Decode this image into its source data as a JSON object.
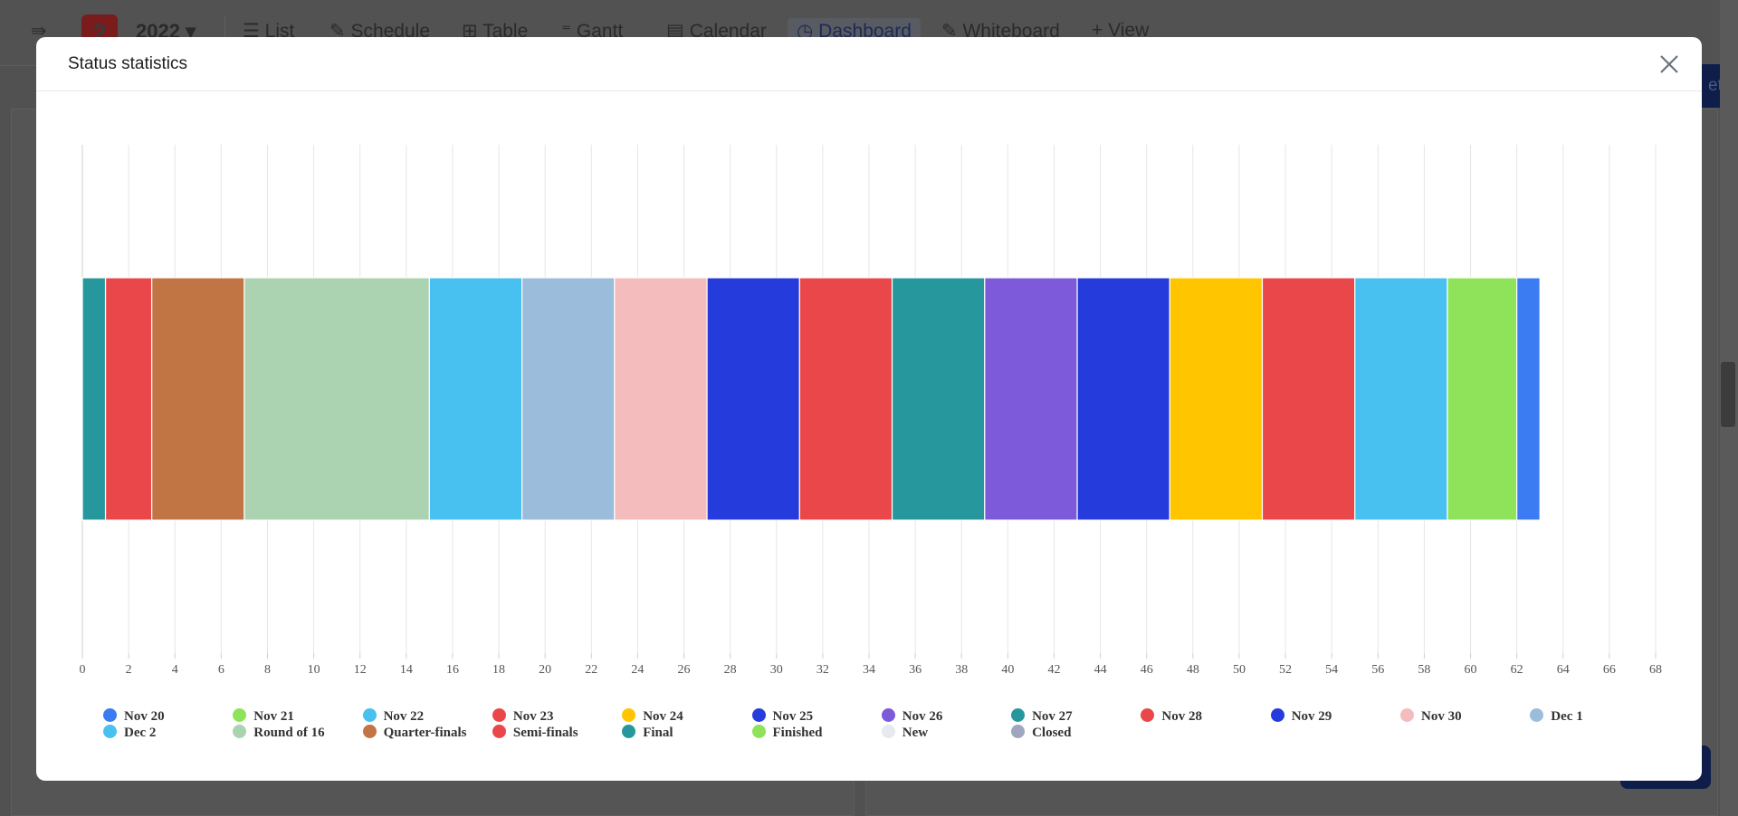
{
  "background": {
    "project_badge": "2",
    "year": "2022",
    "views": [
      "List",
      "Schedule",
      "Table",
      "Gantt",
      "Calendar",
      "Dashboard",
      "Whiteboard",
      "View"
    ],
    "active_view": "Dashboard",
    "right_button_fragment": "et"
  },
  "modal": {
    "title": "Status statistics",
    "close_icon": "close-icon"
  },
  "chart_data": {
    "type": "bar",
    "orientation": "horizontal",
    "stacked": true,
    "xlim": [
      0,
      68
    ],
    "x_ticks": [
      0,
      2,
      4,
      6,
      8,
      10,
      12,
      14,
      16,
      18,
      20,
      22,
      24,
      26,
      28,
      30,
      32,
      34,
      36,
      38,
      40,
      42,
      44,
      46,
      48,
      50,
      52,
      54,
      56,
      58,
      60,
      62,
      64,
      66,
      68
    ],
    "grid": true,
    "legend_position": "bottom",
    "series": [
      {
        "name": "Nov 20",
        "value": 1,
        "color": "#3b7cf2"
      },
      {
        "name": "Nov 21",
        "value": 3,
        "color": "#8fe35a"
      },
      {
        "name": "Nov 22",
        "value": 4,
        "color": "#49c1f0"
      },
      {
        "name": "Nov 23",
        "value": 4,
        "color": "#e9474a"
      },
      {
        "name": "Nov 24",
        "value": 4,
        "color": "#ffc600"
      },
      {
        "name": "Nov 25",
        "value": 4,
        "color": "#253bdb"
      },
      {
        "name": "Nov 26",
        "value": 4,
        "color": "#7c5ad9"
      },
      {
        "name": "Nov 27",
        "value": 4,
        "color": "#26979d"
      },
      {
        "name": "Nov 28",
        "value": 4,
        "color": "#e9474a"
      },
      {
        "name": "Nov 29",
        "value": 4,
        "color": "#253bdb"
      },
      {
        "name": "Nov 30",
        "value": 4,
        "color": "#f4bcbc"
      },
      {
        "name": "Dec 1",
        "value": 4,
        "color": "#9bbcdb"
      },
      {
        "name": "Dec 2",
        "value": 4,
        "color": "#49c1f0"
      },
      {
        "name": "Round of 16",
        "value": 8,
        "color": "#abd3b1"
      },
      {
        "name": "Quarter-finals",
        "value": 4,
        "color": "#c17444"
      },
      {
        "name": "Semi-finals",
        "value": 2,
        "color": "#e9474a"
      },
      {
        "name": "Final",
        "value": 1,
        "color": "#26979d"
      },
      {
        "name": "Finished",
        "value": 0,
        "color": "#8fe35a"
      },
      {
        "name": "New",
        "value": 0,
        "color": "#e6e9ee"
      },
      {
        "name": "Closed",
        "value": 0,
        "color": "#9fa6bf"
      }
    ]
  }
}
